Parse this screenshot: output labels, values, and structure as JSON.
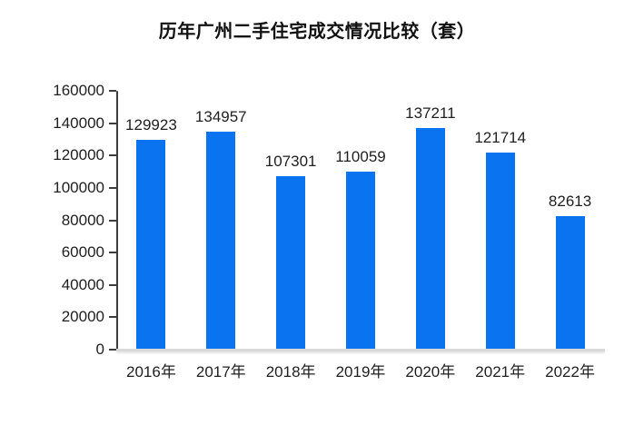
{
  "chart_data": {
    "type": "bar",
    "title": "历年广州二手住宅成交情况比较（套）",
    "categories": [
      "2016年",
      "2017年",
      "2018年",
      "2019年",
      "2020年",
      "2021年",
      "2022年"
    ],
    "values": [
      129923,
      134957,
      107301,
      110059,
      137211,
      121714,
      82613
    ],
    "data_labels": [
      129923,
      134957,
      107301,
      110059,
      137211,
      121714,
      82613
    ],
    "xlabel": "",
    "ylabel": "",
    "ylim": [
      0,
      160000
    ],
    "yticks": [
      0,
      20000,
      40000,
      60000,
      80000,
      100000,
      120000,
      140000,
      160000
    ],
    "grid": false,
    "legend_position": "none",
    "data_label_position": "outside-end",
    "colors": {
      "bar": "#0a73f0",
      "axis": "#3d3d3d",
      "baseline": "#d9d9d9",
      "text": "#1f1f1f",
      "title": "#111111",
      "background": "#ffffff"
    }
  }
}
